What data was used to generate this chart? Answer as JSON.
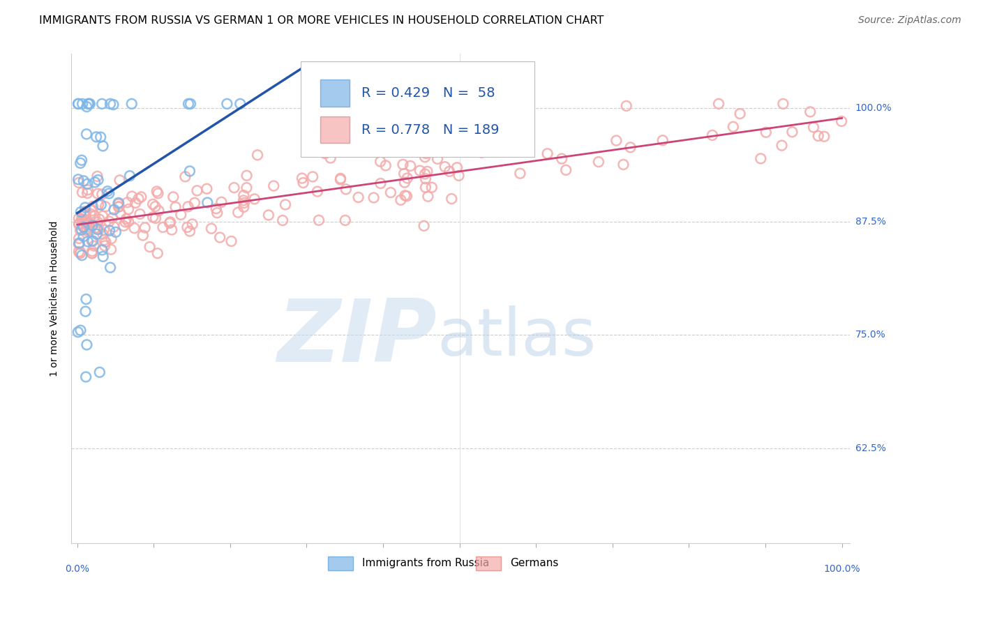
{
  "title": "IMMIGRANTS FROM RUSSIA VS GERMAN 1 OR MORE VEHICLES IN HOUSEHOLD CORRELATION CHART",
  "source": "Source: ZipAtlas.com",
  "ylabel": "1 or more Vehicles in Household",
  "legend": {
    "russia_label": "Immigrants from Russia",
    "german_label": "Germans",
    "russia_R": 0.429,
    "russia_N": 58,
    "german_R": 0.778,
    "german_N": 189
  },
  "yticks": [
    0.625,
    0.75,
    0.875,
    1.0
  ],
  "ytick_labels": [
    "62.5%",
    "75.0%",
    "87.5%",
    "100.0%"
  ],
  "ymin": 0.52,
  "ymax": 1.06,
  "xmin": -0.008,
  "xmax": 1.01,
  "russia_color": "#7EB6E8",
  "russia_edge_color": "#5A9FD4",
  "russia_line_color": "#2255AA",
  "german_color": "#F4AAAA",
  "german_edge_color": "#E08080",
  "german_line_color": "#CC4477",
  "title_fontsize": 11.5,
  "axis_label_fontsize": 10,
  "tick_fontsize": 10,
  "legend_fontsize": 14,
  "source_fontsize": 10,
  "background_color": "#FFFFFF",
  "grid_color": "#CCCCCC",
  "right_tick_color": "#3366CC",
  "marker_size": 100
}
